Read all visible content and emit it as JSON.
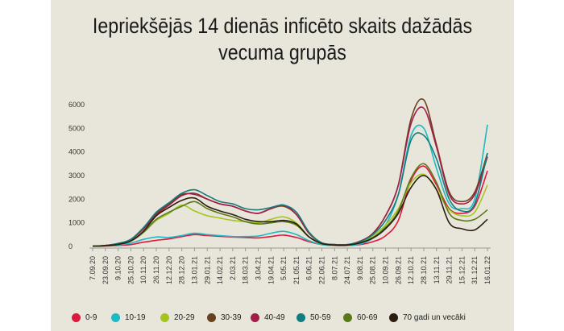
{
  "title": "Iepriekšējās 14 dienās inficēto skaits dažādās vecuma grupās",
  "chart_data": {
    "type": "line",
    "title": "Iepriekšējās 14 dienās inficēto skaits dažādās vecuma grupās",
    "xlabel": "",
    "ylabel": "",
    "ylim": [
      0,
      6000
    ],
    "yticks": [
      0,
      1000,
      2000,
      3000,
      4000,
      5000,
      6000
    ],
    "x_tick_labels": [
      "7.09.20",
      "23.09.20",
      "9.10.20",
      "25.10.20",
      "10.11.20",
      "26.11.20",
      "12.12.20",
      "28.12.20",
      "13.01.21",
      "29.01.21",
      "14.02.21",
      "2.03.21",
      "18.03.21",
      "3.04.21",
      "19.04.21",
      "5.05.21",
      "21.05.21",
      "6.06.21",
      "22.06.21",
      "8.07.21",
      "24.07.21",
      "9.08.21",
      "25.08.21",
      "10.09.21",
      "26.09.21",
      "12.10.21",
      "28.10.21",
      "13.11.21",
      "29.11.21",
      "15.12.21",
      "31.12.21",
      "16.01.22"
    ],
    "grid": false,
    "legend_position": "bottom",
    "x": [
      "7.09.20",
      "23.09.20",
      "9.10.20",
      "25.10.20",
      "10.11.20",
      "26.11.20",
      "12.12.20",
      "28.12.20",
      "13.01.21",
      "29.01.21",
      "14.02.21",
      "2.03.21",
      "18.03.21",
      "3.04.21",
      "19.04.21",
      "5.05.21",
      "21.05.21",
      "6.06.21",
      "22.06.21",
      "8.07.21",
      "24.07.21",
      "9.08.21",
      "25.08.21",
      "10.09.21",
      "26.09.21",
      "12.10.21",
      "28.10.21",
      "13.11.21",
      "29.11.21",
      "15.12.21",
      "31.12.21",
      "16.01.22"
    ],
    "series": [
      {
        "name": "0-9",
        "color": "#e0173f",
        "values": [
          10,
          20,
          40,
          80,
          180,
          260,
          320,
          420,
          500,
          460,
          430,
          400,
          380,
          360,
          420,
          480,
          380,
          200,
          80,
          40,
          40,
          80,
          200,
          450,
          1100,
          2800,
          3400,
          2600,
          1600,
          1400,
          1700,
          3200
        ]
      },
      {
        "name": "10-19",
        "color": "#1fb8c4",
        "values": [
          20,
          30,
          60,
          140,
          300,
          400,
          380,
          460,
          560,
          500,
          460,
          420,
          420,
          440,
          560,
          640,
          500,
          240,
          80,
          40,
          40,
          100,
          350,
          900,
          2200,
          4700,
          5000,
          3300,
          1800,
          1600,
          2000,
          5150
        ]
      },
      {
        "name": "20-29",
        "color": "#a6c51b",
        "values": [
          10,
          40,
          100,
          250,
          600,
          1100,
          1400,
          1750,
          1500,
          1300,
          1200,
          1100,
          1050,
          1000,
          1150,
          1250,
          1000,
          400,
          120,
          60,
          60,
          180,
          450,
          900,
          1600,
          2700,
          3050,
          2400,
          1550,
          1300,
          1450,
          2600
        ]
      },
      {
        "name": "30-39",
        "color": "#6b4220",
        "values": [
          10,
          40,
          120,
          300,
          800,
          1400,
          1800,
          2200,
          2200,
          2000,
          1800,
          1700,
          1500,
          1400,
          1600,
          1700,
          1350,
          550,
          150,
          80,
          80,
          220,
          550,
          1300,
          2600,
          5400,
          6200,
          4300,
          2300,
          1900,
          2300,
          3950
        ]
      },
      {
        "name": "40-49",
        "color": "#a41c4a",
        "values": [
          10,
          40,
          120,
          280,
          750,
          1350,
          1750,
          2150,
          2250,
          2000,
          1800,
          1700,
          1500,
          1400,
          1600,
          1750,
          1350,
          550,
          150,
          80,
          80,
          220,
          550,
          1300,
          2600,
          5200,
          5850,
          4200,
          2200,
          1800,
          2200,
          3800
        ]
      },
      {
        "name": "50-59",
        "color": "#137c7c",
        "values": [
          10,
          40,
          130,
          300,
          800,
          1450,
          1850,
          2250,
          2400,
          2150,
          1900,
          1800,
          1600,
          1550,
          1650,
          1750,
          1450,
          600,
          150,
          80,
          80,
          200,
          500,
          1100,
          2200,
          4500,
          4700,
          3700,
          2000,
          1500,
          1800,
          3950
        ]
      },
      {
        "name": "60-69",
        "color": "#5a7a1a",
        "values": [
          10,
          30,
          90,
          230,
          600,
          1150,
          1450,
          1700,
          1900,
          1600,
          1400,
          1250,
          1050,
          950,
          1000,
          1050,
          900,
          400,
          120,
          60,
          60,
          150,
          380,
          800,
          1500,
          2900,
          3500,
          2700,
          1400,
          1100,
          1150,
          1550
        ]
      },
      {
        "name": "70 gadi un vecāki",
        "color": "#2b1d10",
        "values": [
          10,
          30,
          90,
          230,
          650,
          1300,
          1650,
          1950,
          2050,
          1700,
          1500,
          1350,
          1150,
          1050,
          1050,
          1100,
          950,
          400,
          120,
          60,
          60,
          150,
          350,
          750,
          1400,
          2500,
          3000,
          2400,
          1000,
          750,
          700,
          1150
        ]
      }
    ]
  }
}
